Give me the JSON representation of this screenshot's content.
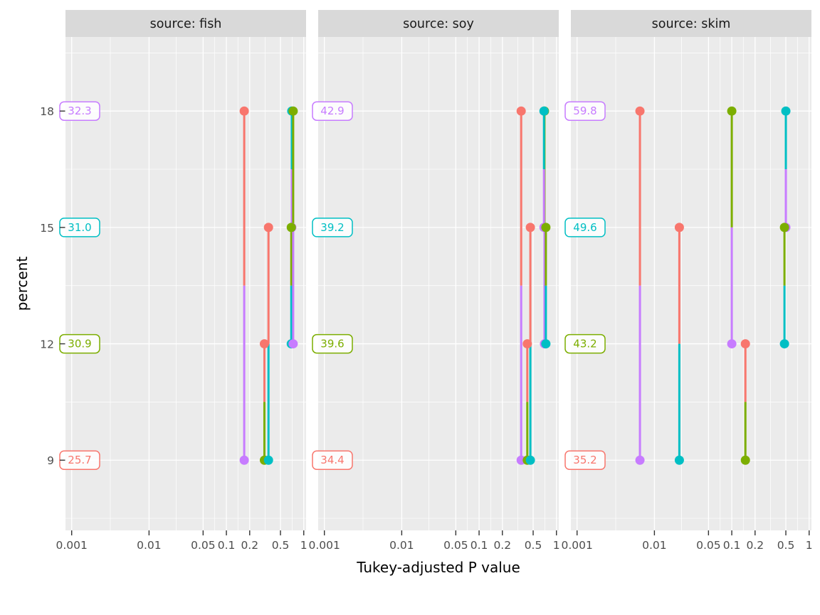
{
  "theme": {
    "background": "#FFFFFF",
    "panel_bg": "#EBEBEB",
    "strip_bg": "#D9D9D9",
    "strip_text_color": "#1A1A1A",
    "grid_color": "#FFFFFF",
    "axis_text_color": "#4D4D4D",
    "tick_color": "#333333",
    "axis_title_color": "#000000",
    "label_box_fill": "#FFFFFF"
  },
  "axes": {
    "x_tick_values": [
      0.001,
      0.01,
      0.05,
      0.1,
      0.2,
      0.5,
      1
    ],
    "x_tick_labels": [
      "0.001",
      "0.01",
      "0.05",
      "0.1",
      "0.2",
      "0.5",
      "1"
    ],
    "x_minor_values": [
      0.00316,
      0.0224,
      0.0707,
      0.141,
      0.316,
      0.707
    ],
    "y_tick_values": [
      18,
      15,
      12,
      9
    ],
    "y_tick_labels": [
      "18",
      "15",
      "12",
      "9"
    ],
    "y_minor_values": [
      19.5,
      16.5,
      13.5,
      10.5,
      7.5
    ],
    "x_log10_domain": [
      -3.08,
      0.03
    ],
    "y_domain": [
      7.19,
      19.91
    ]
  },
  "chart_data": {
    "type": "scatter",
    "subtype": "pairwise P-value plot (pwpp): each vertical segment joins the two compared percent levels at x = adjusted P value; each segment half and end dot take the color of the opposite level of the pair",
    "xlabel": "Tukey-adjusted P value",
    "ylabel": "percent",
    "x_scale": "log10",
    "grid": true,
    "legend": "none",
    "level_colors": {
      "9": "#F8766D",
      "12": "#7CAE00",
      "15": "#00BFC4",
      "18": "#C77CFF"
    },
    "facets": [
      {
        "label": "source: fish",
        "emmeans": [
          {
            "percent": 18,
            "label": "32.3"
          },
          {
            "percent": 15,
            "label": "31.0"
          },
          {
            "percent": 12,
            "label": "30.9"
          },
          {
            "percent": 9,
            "label": "25.7"
          }
        ],
        "comparisons": [
          {
            "pair": [
              9,
              18
            ],
            "p": 0.17
          },
          {
            "pair": [
              9,
              12
            ],
            "p": 0.31
          },
          {
            "pair": [
              9,
              15
            ],
            "p": 0.35
          },
          {
            "pair": [
              15,
              18
            ],
            "p": 0.7
          },
          {
            "pair": [
              12,
              15
            ],
            "p": 0.69
          },
          {
            "pair": [
              12,
              18
            ],
            "p": 0.73
          }
        ]
      },
      {
        "label": "source: soy",
        "emmeans": [
          {
            "percent": 18,
            "label": "42.9"
          },
          {
            "percent": 15,
            "label": "39.2"
          },
          {
            "percent": 12,
            "label": "39.6"
          },
          {
            "percent": 9,
            "label": "34.4"
          }
        ],
        "comparisons": [
          {
            "pair": [
              9,
              18
            ],
            "p": 0.35
          },
          {
            "pair": [
              9,
              12
            ],
            "p": 0.42
          },
          {
            "pair": [
              9,
              15
            ],
            "p": 0.46
          },
          {
            "pair": [
              12,
              18
            ],
            "p": 0.7
          },
          {
            "pair": [
              15,
              18
            ],
            "p": 0.69
          },
          {
            "pair": [
              12,
              15
            ],
            "p": 0.73
          }
        ]
      },
      {
        "label": "source: skim",
        "emmeans": [
          {
            "percent": 18,
            "label": "59.8"
          },
          {
            "percent": 15,
            "label": "49.6"
          },
          {
            "percent": 12,
            "label": "43.2"
          },
          {
            "percent": 9,
            "label": "35.2"
          }
        ],
        "comparisons": [
          {
            "pair": [
              9,
              18
            ],
            "p": 0.0065
          },
          {
            "pair": [
              9,
              15
            ],
            "p": 0.021
          },
          {
            "pair": [
              12,
              18
            ],
            "p": 0.1
          },
          {
            "pair": [
              9,
              12
            ],
            "p": 0.15
          },
          {
            "pair": [
              15,
              18
            ],
            "p": 0.5
          },
          {
            "pair": [
              12,
              15
            ],
            "p": 0.48
          }
        ]
      }
    ]
  }
}
